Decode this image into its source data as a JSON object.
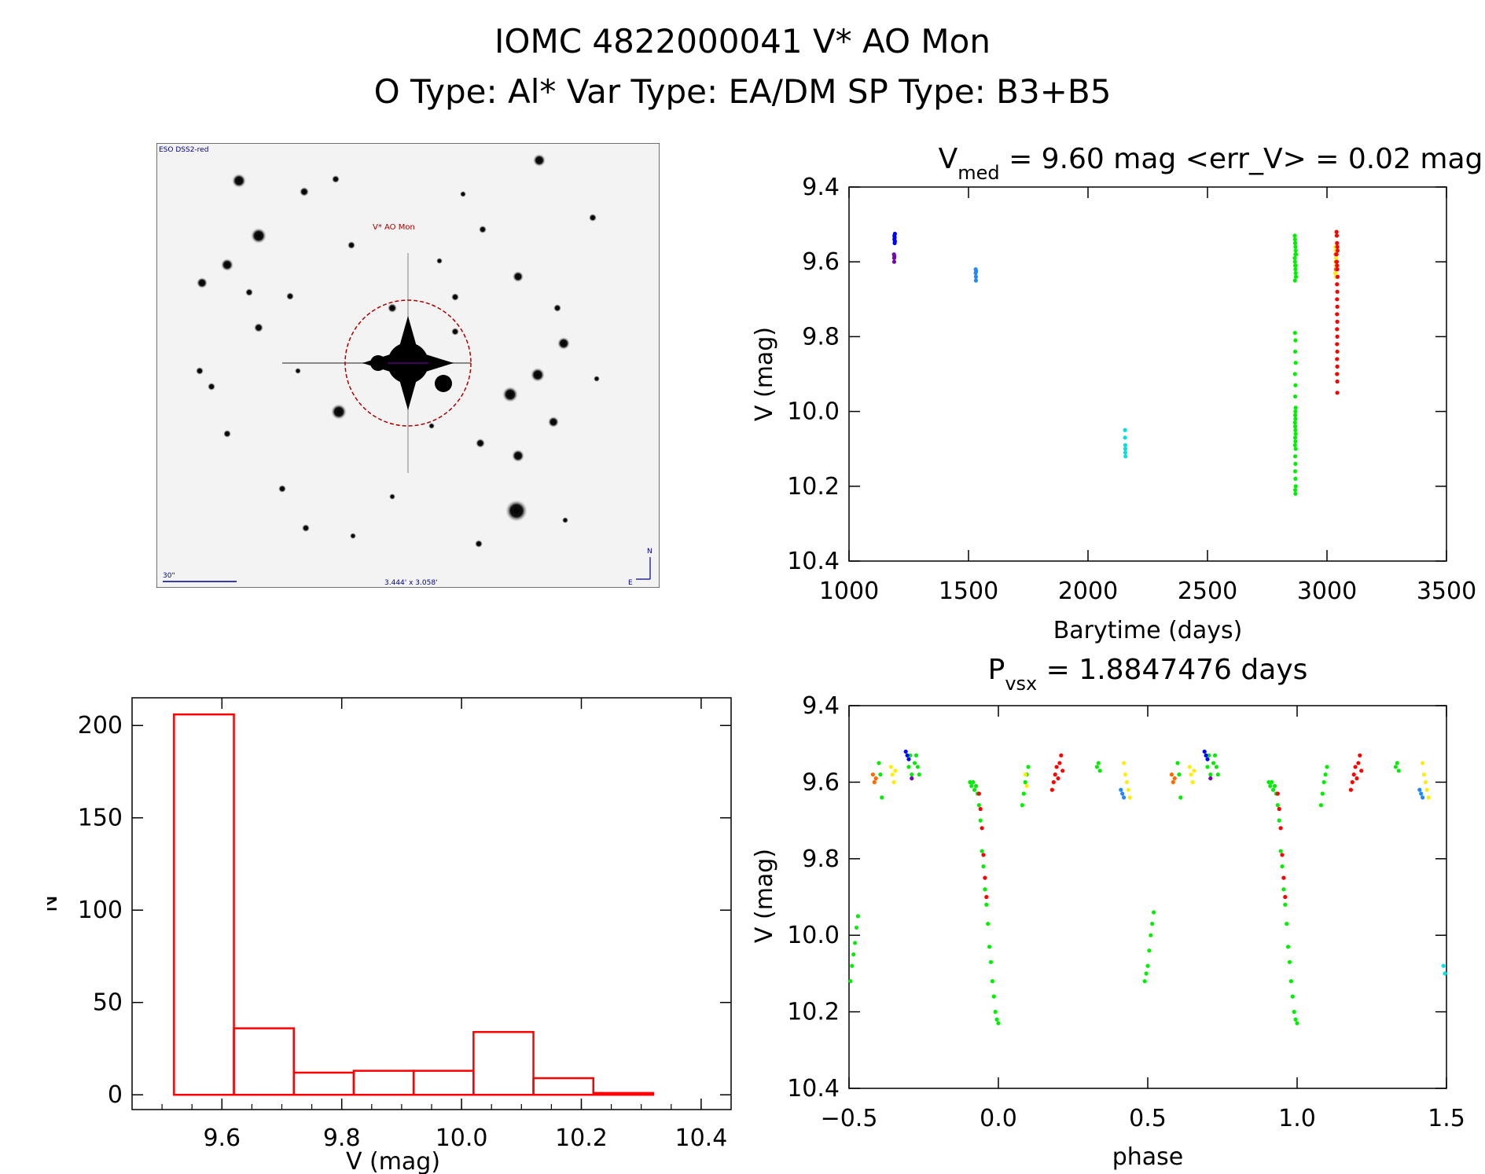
{
  "header": {
    "title": "IOMC 4822000041     V* AO Mon",
    "subtitle": "O Type: Al*   Var Type: EA/DM   SP Type: B3+B5"
  },
  "finder": {
    "survey_label": "ESO DSS2-red",
    "target_label": "V* AO Mon",
    "scale_label": "30\"",
    "fov_label": "3.444' x 3.058'",
    "north_label": "N",
    "east_label": "E"
  },
  "colors": {
    "histogram": "#ff0000",
    "season_colors": [
      "#0000ff",
      "#7a00b4",
      "#1e88ff",
      "#00e0e0",
      "#00ee00",
      "#ffee00",
      "#ff6a00",
      "#ff0000"
    ]
  },
  "chart_data": [
    {
      "type": "scatter",
      "title_prefix": "V",
      "title_sub": "med",
      "title_rest": " = 9.60 mag <err_V> = 0.02 mag",
      "xlabel": "Barytime (days)",
      "ylabel": "V (mag)",
      "xlim": [
        1000,
        3500
      ],
      "ylim": [
        10.4,
        9.4
      ],
      "x_ticks": [
        1000,
        1500,
        2000,
        2500,
        3000,
        3500
      ],
      "y_ticks": [
        "9.4",
        "9.6",
        "9.8",
        "10.0",
        "10.2",
        "10.4"
      ],
      "series": [
        {
          "color": "#0000ff",
          "x": [
            1190,
            1190,
            1191,
            1191,
            1192,
            1192
          ],
          "y": [
            9.53,
            9.54,
            9.55,
            9.535,
            9.545,
            9.525
          ]
        },
        {
          "color": "#7a00b4",
          "x": [
            1188,
            1189,
            1189,
            1190
          ],
          "y": [
            9.58,
            9.59,
            9.6,
            9.585
          ]
        },
        {
          "color": "#1e88ff",
          "x": [
            1530,
            1530,
            1531,
            1531,
            1532
          ],
          "y": [
            9.62,
            9.63,
            9.64,
            9.65,
            9.625
          ]
        },
        {
          "color": "#00e0e0",
          "x": [
            2155,
            2155,
            2156,
            2156,
            2156,
            2157
          ],
          "y": [
            10.05,
            10.07,
            10.09,
            10.1,
            10.11,
            10.12
          ]
        },
        {
          "color": "#00ee00",
          "x": [
            2865,
            2866,
            2867,
            2868,
            2869,
            2870,
            2865,
            2866,
            2867,
            2868,
            2869,
            2870,
            2866,
            2867,
            2868,
            2869,
            2866,
            2868,
            2867,
            2869,
            2866,
            2868,
            2867,
            2869,
            2868,
            2867,
            2868,
            2866,
            2867,
            2868,
            2869,
            2867,
            2868,
            2866,
            2869,
            2867,
            2868,
            2867,
            2868,
            2869,
            2867,
            2868
          ],
          "y": [
            9.53,
            9.54,
            9.55,
            9.56,
            9.57,
            9.58,
            9.59,
            9.6,
            9.61,
            9.62,
            9.63,
            9.64,
            9.65,
            9.55,
            9.58,
            9.61,
            9.79,
            9.81,
            9.84,
            9.87,
            9.9,
            9.93,
            9.96,
            9.99,
            10.0,
            10.01,
            10.02,
            10.03,
            10.04,
            10.05,
            10.06,
            10.07,
            10.08,
            10.09,
            10.1,
            10.12,
            10.14,
            10.16,
            10.18,
            10.2,
            10.21,
            10.22
          ]
        },
        {
          "color": "#ffee00",
          "x": [
            3035,
            3036,
            3037,
            3038,
            3036,
            3037,
            3038,
            3035,
            3037
          ],
          "y": [
            9.56,
            9.57,
            9.58,
            9.59,
            9.6,
            9.61,
            9.62,
            9.63,
            9.64
          ]
        },
        {
          "color": "#ff6a00",
          "x": [
            3036,
            3038,
            3037
          ],
          "y": [
            9.58,
            9.6,
            9.62
          ]
        },
        {
          "color": "#ff0000",
          "x": [
            3040,
            3041,
            3042,
            3043,
            3044,
            3040,
            3041,
            3042,
            3043,
            3044,
            3042,
            3043,
            3042,
            3043,
            3042,
            3043,
            3042,
            3043,
            3042,
            3043,
            3042,
            3043,
            3042,
            3043,
            3043
          ],
          "y": [
            9.52,
            9.53,
            9.55,
            9.56,
            9.57,
            9.58,
            9.6,
            9.61,
            9.62,
            9.64,
            9.66,
            9.68,
            9.7,
            9.72,
            9.74,
            9.76,
            9.78,
            9.8,
            9.82,
            9.84,
            9.86,
            9.88,
            9.9,
            9.92,
            9.95
          ]
        }
      ]
    },
    {
      "type": "bar",
      "xlabel": "V (mag)",
      "ylabel": "N",
      "xlim": [
        9.45,
        10.45
      ],
      "ylim": [
        -8,
        215
      ],
      "x_ticks": [
        "9.6",
        "9.8",
        "10.0",
        "10.2",
        "10.4"
      ],
      "y_ticks": [
        "0",
        "50",
        "100",
        "150",
        "200"
      ],
      "bin_edges": [
        9.52,
        9.62,
        9.72,
        9.82,
        9.92,
        10.02,
        10.12,
        10.22,
        10.32
      ],
      "values": [
        206,
        36,
        12,
        13,
        13,
        34,
        9,
        1
      ]
    },
    {
      "type": "scatter",
      "title_prefix": "P",
      "title_sub": "vsx",
      "title_rest": " = 1.8847476 days",
      "xlabel": "phase",
      "ylabel": "V (mag)",
      "xlim": [
        -0.5,
        1.5
      ],
      "ylim": [
        10.4,
        9.4
      ],
      "x_ticks": [
        "-0.5",
        "0.0",
        "0.5",
        "1.0",
        "1.5"
      ],
      "y_ticks": [
        "9.4",
        "9.6",
        "9.8",
        "10.0",
        "10.2",
        "10.4"
      ],
      "series": [
        {
          "color": "#00ee00",
          "x": [
            -0.495,
            -0.49,
            -0.485,
            -0.48,
            -0.475,
            -0.47,
            -0.095,
            -0.09,
            -0.085,
            -0.08,
            -0.075,
            -0.07,
            -0.065,
            -0.06,
            -0.055,
            -0.05,
            -0.045,
            -0.04,
            -0.035,
            -0.03,
            -0.025,
            -0.02,
            -0.015,
            -0.01,
            -0.005,
            0.0,
            0.08,
            0.085,
            0.09,
            0.095,
            0.1,
            0.49,
            0.495,
            0.5,
            0.505,
            0.51,
            0.515,
            0.52,
            0.905,
            0.91,
            0.915,
            0.92,
            0.925,
            0.93,
            0.935,
            0.94,
            0.945,
            0.95,
            0.955,
            0.96,
            0.965,
            0.97,
            0.975,
            0.98,
            0.985,
            0.99,
            0.995,
            1.0,
            1.08,
            1.085,
            1.09,
            1.095,
            1.1,
            -0.4,
            -0.395,
            -0.39,
            -0.3,
            -0.295,
            -0.29,
            -0.28,
            -0.275,
            -0.27,
            -0.265,
            0.33,
            0.335,
            0.34,
            0.6,
            0.605,
            0.61,
            0.7,
            0.705,
            0.71,
            0.72,
            0.725,
            0.73,
            0.735,
            1.33,
            1.335,
            1.34
          ],
          "y": [
            10.12,
            10.08,
            10.05,
            10.02,
            9.98,
            9.95,
            9.6,
            9.61,
            9.6,
            9.62,
            9.61,
            9.63,
            9.66,
            9.7,
            9.78,
            9.82,
            9.88,
            9.92,
            9.97,
            10.03,
            10.07,
            10.12,
            10.16,
            10.2,
            10.22,
            10.23,
            9.66,
            9.63,
            9.6,
            9.58,
            9.56,
            10.12,
            10.1,
            10.08,
            10.04,
            10.0,
            9.97,
            9.94,
            9.6,
            9.61,
            9.6,
            9.62,
            9.61,
            9.63,
            9.66,
            9.7,
            9.78,
            9.82,
            9.88,
            9.92,
            9.97,
            10.03,
            10.07,
            10.12,
            10.16,
            10.2,
            10.22,
            10.23,
            9.66,
            9.63,
            9.6,
            9.58,
            9.56,
            9.55,
            9.58,
            9.64,
            9.56,
            9.53,
            9.58,
            9.55,
            9.53,
            9.56,
            9.58,
            9.56,
            9.55,
            9.57,
            9.55,
            9.58,
            9.64,
            9.56,
            9.53,
            9.58,
            9.55,
            9.53,
            9.56,
            9.58,
            9.56,
            9.55,
            9.57
          ]
        },
        {
          "color": "#ffee00",
          "x": [
            -0.36,
            -0.355,
            -0.35,
            -0.345,
            0.09,
            0.095,
            0.42,
            0.425,
            0.43,
            0.435,
            0.44,
            0.64,
            0.645,
            0.65,
            0.655,
            1.42,
            1.425,
            1.43,
            1.435,
            1.44
          ],
          "y": [
            9.56,
            9.58,
            9.6,
            9.57,
            9.58,
            9.61,
            9.55,
            9.58,
            9.6,
            9.62,
            9.64,
            9.56,
            9.58,
            9.6,
            9.57,
            9.55,
            9.58,
            9.6,
            9.62,
            9.64
          ]
        },
        {
          "color": "#ff6a00",
          "x": [
            -0.42,
            -0.415,
            -0.41,
            0.58,
            0.585,
            0.59
          ],
          "y": [
            9.58,
            9.6,
            9.59,
            9.58,
            9.6,
            9.59
          ]
        },
        {
          "color": "#ff0000",
          "x": [
            0.18,
            0.185,
            0.19,
            0.195,
            0.2,
            0.205,
            0.21,
            0.215,
            -0.065,
            -0.06,
            -0.055,
            -0.05,
            -0.045,
            -0.04,
            1.18,
            1.185,
            1.19,
            1.195,
            1.2,
            1.205,
            1.21,
            1.215,
            0.935,
            0.94,
            0.945,
            0.95,
            0.955,
            0.96
          ],
          "y": [
            9.62,
            9.6,
            9.58,
            9.56,
            9.59,
            9.55,
            9.53,
            9.57,
            9.63,
            9.67,
            9.72,
            9.79,
            9.85,
            9.9,
            9.62,
            9.6,
            9.58,
            9.56,
            9.59,
            9.55,
            9.53,
            9.57,
            9.63,
            9.67,
            9.72,
            9.79,
            9.85,
            9.9
          ]
        },
        {
          "color": "#0000ff",
          "x": [
            -0.31,
            -0.305,
            -0.3,
            0.69,
            0.695,
            0.7
          ],
          "y": [
            9.52,
            9.53,
            9.54,
            9.52,
            9.53,
            9.54
          ]
        },
        {
          "color": "#1e88ff",
          "x": [
            0.41,
            0.415,
            0.42,
            1.41,
            1.415,
            1.42
          ],
          "y": [
            9.62,
            9.63,
            9.64,
            9.62,
            9.63,
            9.64
          ]
        },
        {
          "color": "#00e0e0",
          "x": [
            1.49,
            1.495
          ],
          "y": [
            10.08,
            10.1
          ]
        },
        {
          "color": "#7a00b4",
          "x": [
            -0.29,
            0.71
          ],
          "y": [
            9.59,
            9.59
          ]
        }
      ]
    }
  ]
}
